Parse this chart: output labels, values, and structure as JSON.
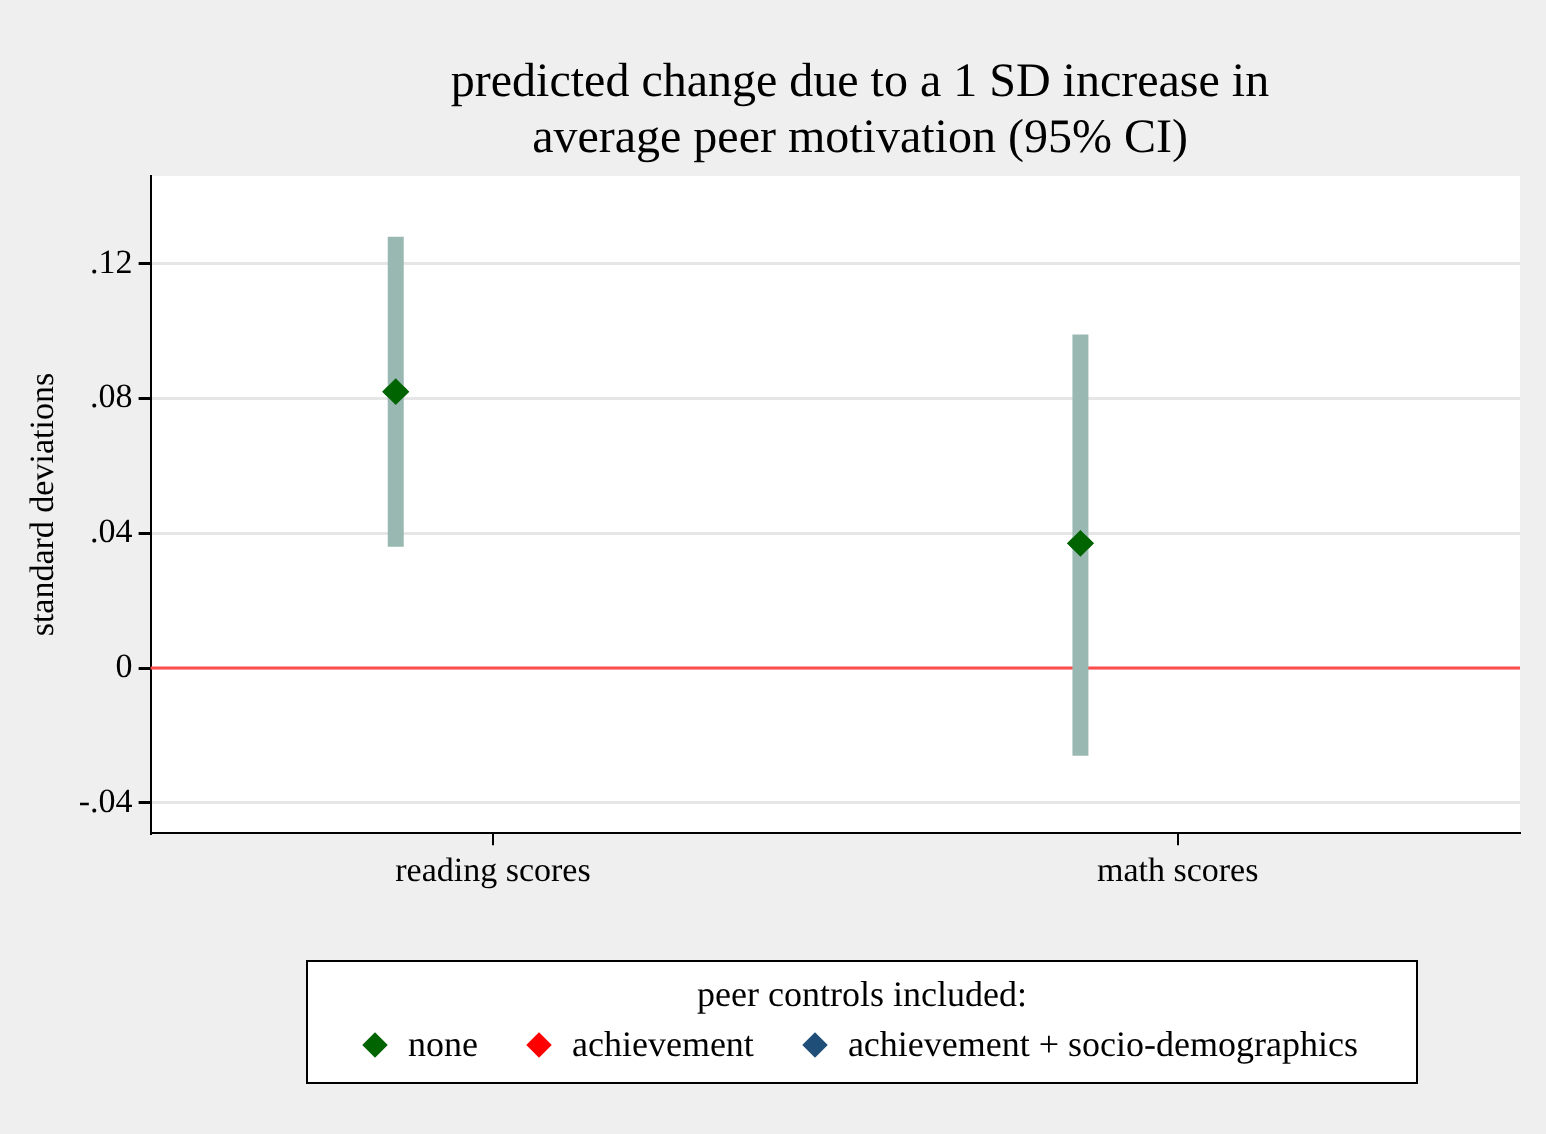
{
  "chart_data": {
    "type": "scatter",
    "title": "predicted change due to a 1 SD increase in average peer motivation (95% CI)",
    "ylabel": "standard deviations",
    "legend_title": "peer controls included:",
    "categories": [
      "reading scores",
      "math scores"
    ],
    "series": [
      {
        "name": "none",
        "color": "#006400",
        "values": [
          0.082,
          0.037
        ],
        "errors": [
          [
            0.036,
            0.128
          ],
          [
            -0.026,
            0.099
          ]
        ]
      },
      {
        "name": "achievement",
        "color": "#ff0000",
        "values": [
          null,
          null
        ]
      },
      {
        "name": "achievement + socio-demographics",
        "color": "#1f4e79",
        "values": [
          null,
          null
        ]
      }
    ],
    "ylim": [
      -0.049,
      0.146
    ],
    "yticks": [
      {
        "value": -0.04,
        "label": "-.04"
      },
      0,
      {
        "value": 0.04,
        "label": ".04"
      },
      {
        "value": 0.08,
        "label": ".08"
      },
      {
        "value": 0.12,
        "label": ".12"
      }
    ],
    "ref_lines": [
      {
        "axis": "y",
        "value": 0,
        "color": "#ff4d4d"
      }
    ],
    "grid": "y",
    "legend": "bottom",
    "marker": "diamond"
  }
}
